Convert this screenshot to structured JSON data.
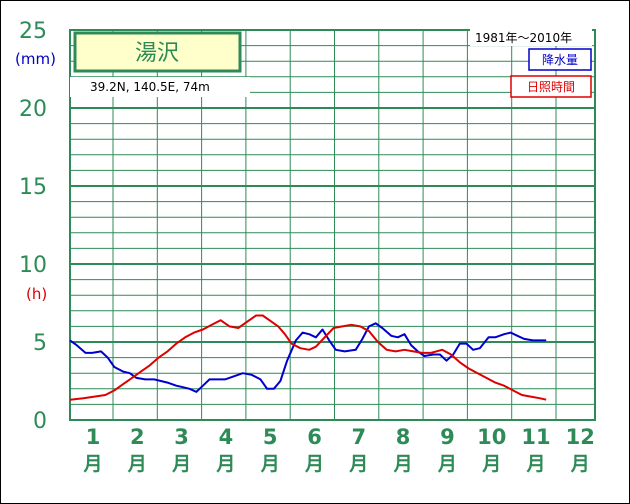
{
  "station": {
    "name": "湯沢",
    "location": "39.2N,  140.5E,  74m",
    "period": "1981年〜2010年"
  },
  "colors": {
    "grid": "#2e8b57",
    "precipitation": "#0000cc",
    "sunshine": "#dd0000",
    "title_bg": "#ffffcc"
  },
  "chart_data": {
    "type": "line",
    "title": "湯沢",
    "y_unit_primary": "(mm)",
    "y_unit_secondary": "(h)",
    "yticks": [
      "0",
      "5",
      "10",
      "15",
      "20",
      "25"
    ],
    "ylim": [
      0,
      25
    ],
    "months": [
      "1",
      "2",
      "3",
      "4",
      "5",
      "6",
      "7",
      "8",
      "9",
      "10",
      "11",
      "12"
    ],
    "month_suffix": "月",
    "x_domain": [
      1,
      12.75
    ],
    "legend": [
      "降水量",
      "日照時間"
    ],
    "series": [
      {
        "name": "降水量",
        "color": "#0000cc",
        "points": [
          [
            1.0,
            5.1
          ],
          [
            1.15,
            4.8
          ],
          [
            1.35,
            4.3
          ],
          [
            1.5,
            4.3
          ],
          [
            1.7,
            4.4
          ],
          [
            1.85,
            4.0
          ],
          [
            2.0,
            3.4
          ],
          [
            2.2,
            3.1
          ],
          [
            2.35,
            3.0
          ],
          [
            2.5,
            2.7
          ],
          [
            2.7,
            2.6
          ],
          [
            2.9,
            2.6
          ],
          [
            3.05,
            2.5
          ],
          [
            3.2,
            2.4
          ],
          [
            3.4,
            2.2
          ],
          [
            3.55,
            2.1
          ],
          [
            3.7,
            2.0
          ],
          [
            3.85,
            1.8
          ],
          [
            4.0,
            2.2
          ],
          [
            4.15,
            2.6
          ],
          [
            4.3,
            2.6
          ],
          [
            4.5,
            2.6
          ],
          [
            4.7,
            2.8
          ],
          [
            4.9,
            3.0
          ],
          [
            5.1,
            2.9
          ],
          [
            5.3,
            2.6
          ],
          [
            5.45,
            2.0
          ],
          [
            5.6,
            2.0
          ],
          [
            5.75,
            2.5
          ],
          [
            5.9,
            3.8
          ],
          [
            6.1,
            5.1
          ],
          [
            6.25,
            5.6
          ],
          [
            6.4,
            5.5
          ],
          [
            6.55,
            5.3
          ],
          [
            6.7,
            5.8
          ],
          [
            6.85,
            5.1
          ],
          [
            7.0,
            4.5
          ],
          [
            7.2,
            4.4
          ],
          [
            7.45,
            4.5
          ],
          [
            7.6,
            5.2
          ],
          [
            7.75,
            6.0
          ],
          [
            7.9,
            6.2
          ],
          [
            8.05,
            5.9
          ],
          [
            8.25,
            5.4
          ],
          [
            8.4,
            5.3
          ],
          [
            8.55,
            5.5
          ],
          [
            8.7,
            4.8
          ],
          [
            8.85,
            4.4
          ],
          [
            9.0,
            4.1
          ],
          [
            9.2,
            4.2
          ],
          [
            9.35,
            4.2
          ],
          [
            9.5,
            3.8
          ],
          [
            9.65,
            4.2
          ],
          [
            9.8,
            4.9
          ],
          [
            9.95,
            4.9
          ],
          [
            10.1,
            4.5
          ],
          [
            10.25,
            4.6
          ],
          [
            10.45,
            5.3
          ],
          [
            10.6,
            5.3
          ],
          [
            10.8,
            5.5
          ],
          [
            10.95,
            5.6
          ],
          [
            11.1,
            5.4
          ],
          [
            11.25,
            5.2
          ],
          [
            11.45,
            5.1
          ],
          [
            11.6,
            5.1
          ],
          [
            11.75,
            5.1
          ]
        ]
      },
      {
        "name": "日照時間",
        "color": "#dd0000",
        "points": [
          [
            1.0,
            1.3
          ],
          [
            1.3,
            1.4
          ],
          [
            1.55,
            1.5
          ],
          [
            1.8,
            1.6
          ],
          [
            2.0,
            1.9
          ],
          [
            2.2,
            2.3
          ],
          [
            2.4,
            2.7
          ],
          [
            2.6,
            3.1
          ],
          [
            2.8,
            3.5
          ],
          [
            3.0,
            4.0
          ],
          [
            3.2,
            4.4
          ],
          [
            3.4,
            4.9
          ],
          [
            3.6,
            5.3
          ],
          [
            3.8,
            5.6
          ],
          [
            4.0,
            5.8
          ],
          [
            4.2,
            6.1
          ],
          [
            4.4,
            6.4
          ],
          [
            4.6,
            6.0
          ],
          [
            4.8,
            5.9
          ],
          [
            5.0,
            6.3
          ],
          [
            5.2,
            6.7
          ],
          [
            5.35,
            6.7
          ],
          [
            5.5,
            6.4
          ],
          [
            5.7,
            6.0
          ],
          [
            5.85,
            5.5
          ],
          [
            6.0,
            4.9
          ],
          [
            6.2,
            4.6
          ],
          [
            6.4,
            4.5
          ],
          [
            6.55,
            4.7
          ],
          [
            6.75,
            5.3
          ],
          [
            6.95,
            5.9
          ],
          [
            7.15,
            6.0
          ],
          [
            7.35,
            6.1
          ],
          [
            7.55,
            6.0
          ],
          [
            7.75,
            5.7
          ],
          [
            7.95,
            5.0
          ],
          [
            8.15,
            4.5
          ],
          [
            8.35,
            4.4
          ],
          [
            8.55,
            4.5
          ],
          [
            8.75,
            4.4
          ],
          [
            8.95,
            4.3
          ],
          [
            9.15,
            4.3
          ],
          [
            9.4,
            4.5
          ],
          [
            9.6,
            4.2
          ],
          [
            9.8,
            3.7
          ],
          [
            10.0,
            3.3
          ],
          [
            10.2,
            3.0
          ],
          [
            10.4,
            2.7
          ],
          [
            10.6,
            2.4
          ],
          [
            10.8,
            2.2
          ],
          [
            11.0,
            1.9
          ],
          [
            11.2,
            1.6
          ],
          [
            11.4,
            1.5
          ],
          [
            11.6,
            1.4
          ],
          [
            11.75,
            1.3
          ]
        ]
      }
    ]
  }
}
